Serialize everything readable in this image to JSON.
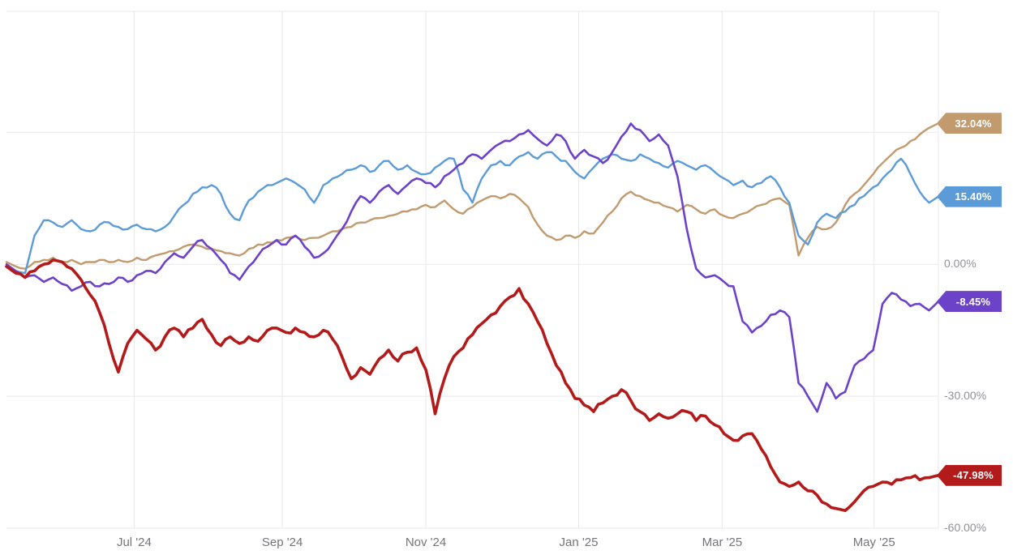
{
  "chart_data": {
    "type": "line",
    "title": "",
    "description": "One-year percent-change comparison of four price series",
    "x_axis": {
      "ticks": [
        {
          "label": "Jul '24",
          "pos": 13.7
        },
        {
          "label": "Sep '24",
          "pos": 29.6
        },
        {
          "label": "Nov '24",
          "pos": 45.0
        },
        {
          "label": "Jan '25",
          "pos": 61.4
        },
        {
          "label": "Mar '25",
          "pos": 76.8
        },
        {
          "label": "May '25",
          "pos": 93.1
        }
      ]
    },
    "y_axis": {
      "unit": "%",
      "range": [
        -60,
        57.5
      ],
      "gridlines": [
        30,
        0,
        -30,
        -60
      ],
      "tick_labels": [
        {
          "value": 0,
          "label": "0.00%"
        },
        {
          "value": -30,
          "label": "-30.00%"
        },
        {
          "value": -60,
          "label": "-60.00%"
        }
      ]
    },
    "series": [
      {
        "id": "tan",
        "color": "#c19a6e",
        "width": 2.4,
        "jitter": 0.35,
        "end_value": 32.04,
        "end_label": "32.04%",
        "values": [
          0.5,
          -0.5,
          -1,
          0.5,
          1,
          1.5,
          0.5,
          1,
          0,
          0.5,
          1,
          0.5,
          1,
          0.5,
          1.5,
          1,
          2,
          2.5,
          3,
          4,
          4.5,
          4,
          3.5,
          3,
          2.5,
          2,
          3.5,
          4.5,
          5,
          5.5,
          6,
          6.5,
          5.5,
          6,
          6.5,
          7.5,
          8,
          8.5,
          9.5,
          10,
          10.5,
          11,
          11.5,
          12,
          12.5,
          13.5,
          13,
          14.5,
          12.5,
          11.5,
          13,
          14.5,
          15.5,
          15,
          16,
          15,
          13,
          9,
          6.5,
          5.5,
          6.5,
          6,
          7.5,
          7,
          9.5,
          12,
          15,
          16.5,
          15.5,
          14.5,
          14,
          13,
          12,
          13.5,
          12.5,
          11.5,
          12.5,
          11,
          10.5,
          11.5,
          12.5,
          13.5,
          14.5,
          15,
          13.5,
          2,
          6,
          8.5,
          8,
          9.5,
          13.5,
          16,
          18,
          20.5,
          23,
          25,
          26.5,
          28,
          29.5,
          31,
          32.04
        ]
      },
      {
        "id": "blue",
        "color": "#5b9bd8",
        "width": 2.4,
        "jitter": 0.5,
        "end_value": 15.4,
        "end_label": "15.40%",
        "values": [
          -0.5,
          -1.5,
          -2,
          6.5,
          10,
          9.5,
          8.5,
          10,
          8,
          7.5,
          9,
          9.5,
          8.5,
          8,
          9,
          8,
          7.5,
          8.5,
          11,
          13.5,
          16,
          17.5,
          18,
          16,
          11.5,
          10,
          14.5,
          16.5,
          18,
          18.5,
          19.5,
          18.5,
          17,
          14,
          18,
          19.5,
          20.5,
          21.5,
          22.5,
          21,
          22.5,
          23.5,
          21.5,
          22.5,
          21,
          20.5,
          22,
          23.5,
          24,
          17,
          14,
          19.5,
          22.5,
          23.5,
          22.5,
          24.5,
          25.5,
          24,
          25.5,
          24.5,
          23.5,
          21,
          19.5,
          22,
          24,
          25,
          24,
          23.5,
          25,
          24,
          23,
          22,
          23.5,
          22.5,
          21.5,
          22.5,
          21,
          19.5,
          18,
          19,
          17.5,
          18.5,
          20,
          17.5,
          14,
          6.5,
          4.5,
          9.5,
          11.5,
          10.5,
          12,
          13.5,
          15.5,
          17.5,
          19.5,
          21.5,
          24,
          20.5,
          16.5,
          14,
          15.4
        ]
      },
      {
        "id": "purple",
        "color": "#6c42c8",
        "width": 2.6,
        "jitter": 0.5,
        "end_value": -8.45,
        "end_label": "-8.45%",
        "values": [
          0,
          -1.5,
          -3,
          -2.5,
          -4,
          -3,
          -4.5,
          -6,
          -5,
          -4,
          -5,
          -4.5,
          -3,
          -4,
          -2.5,
          -1.5,
          -2,
          0.5,
          2.5,
          1.5,
          4,
          5.5,
          3.5,
          1,
          -2,
          -3.5,
          -0.5,
          2,
          4,
          5.5,
          4.5,
          6.5,
          4,
          1.5,
          2.5,
          5,
          8,
          12,
          15.5,
          14,
          16.5,
          18,
          16,
          18,
          19.5,
          18.5,
          17.5,
          20,
          21.5,
          23,
          25,
          24,
          26,
          27.5,
          28,
          29.5,
          30.5,
          28.5,
          27,
          29.5,
          28,
          24,
          26,
          24.5,
          23,
          25.5,
          29,
          32,
          30.5,
          28,
          29.5,
          27,
          20,
          8,
          -1,
          -3,
          -2.5,
          -4,
          -5,
          -13,
          -15.5,
          -14,
          -11.5,
          -10.5,
          -12,
          -27,
          -30,
          -33.5,
          -27,
          -30.5,
          -29,
          -23,
          -21.5,
          -19.5,
          -9,
          -6.5,
          -8,
          -9.5,
          -9,
          -10.5,
          -8.45
        ]
      },
      {
        "id": "red",
        "color": "#b31b1b",
        "width": 3.6,
        "jitter": 0.7,
        "end_value": -47.98,
        "end_label": "-47.98%",
        "values": [
          -0.5,
          -2,
          -3,
          -1.5,
          0,
          1,
          0.5,
          -1,
          -3.5,
          -7,
          -11,
          -18,
          -24.5,
          -18,
          -15,
          -17,
          -19.5,
          -16.5,
          -14.5,
          -16.5,
          -14.5,
          -12.5,
          -16,
          -18.5,
          -16.5,
          -18,
          -16.5,
          -17.5,
          -15,
          -14.5,
          -15.5,
          -14.5,
          -15.5,
          -16.5,
          -15,
          -17,
          -21,
          -26,
          -23.5,
          -25,
          -21.5,
          -19.5,
          -22,
          -20,
          -19,
          -24,
          -34,
          -26,
          -21,
          -19,
          -16,
          -13.5,
          -11.5,
          -9.5,
          -7.5,
          -5.5,
          -9,
          -13,
          -18,
          -23,
          -27,
          -30.5,
          -32,
          -33.5,
          -31.5,
          -30,
          -28.5,
          -31,
          -33.5,
          -35.5,
          -34,
          -35,
          -34,
          -33.5,
          -35.5,
          -34.5,
          -36.5,
          -38.5,
          -40,
          -39,
          -38.5,
          -42,
          -46,
          -49.5,
          -50.5,
          -49.5,
          -51.5,
          -52.5,
          -54.5,
          -55.5,
          -56,
          -54,
          -51.5,
          -50.5,
          -49.5,
          -50,
          -49,
          -48.5,
          -49,
          -48.5,
          -47.98
        ]
      }
    ],
    "style": {
      "gridline_color": "#e9e9ec",
      "x_label_color": "#73757a",
      "y_label_color": "#8f9196"
    }
  }
}
